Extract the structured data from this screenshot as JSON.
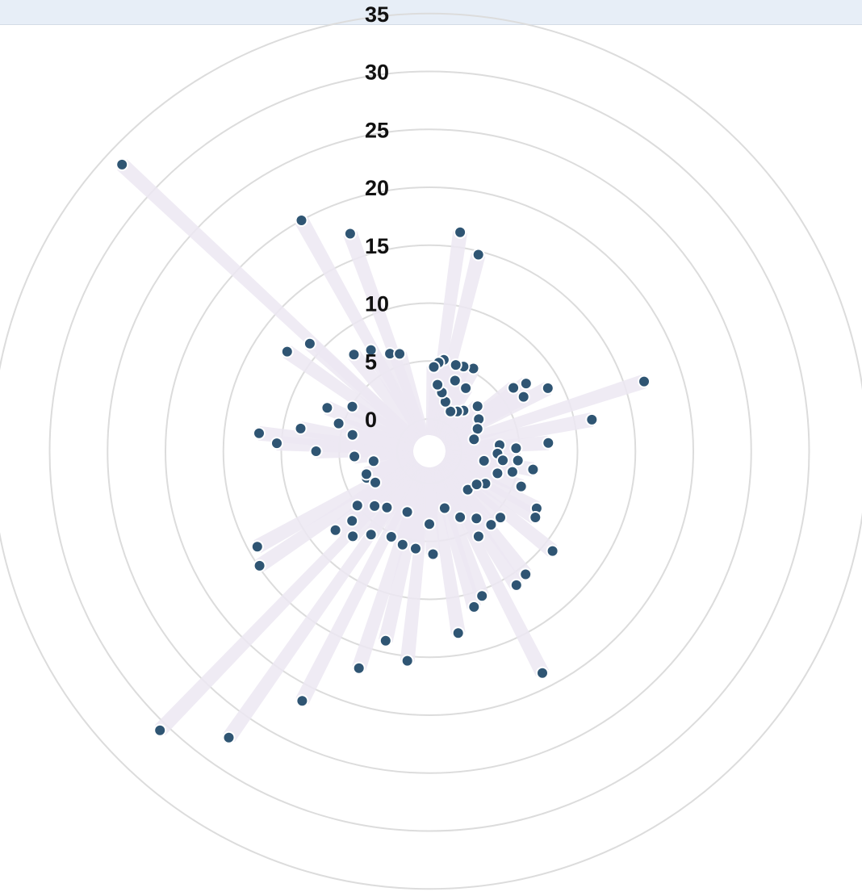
{
  "chart_data": {
    "type": "scatter",
    "coordinate_system": "polar",
    "radial_axis": {
      "ticks": [
        0,
        5,
        10,
        15,
        20,
        25,
        30,
        35
      ],
      "range": [
        0,
        35
      ]
    },
    "grid": true,
    "angle_unit": "degrees clockwise from top",
    "points": [
      {
        "angle": 313,
        "r": 33.5
      },
      {
        "angle": 331,
        "r": 20.0
      },
      {
        "angle": 340,
        "r": 17.2
      },
      {
        "angle": 8,
        "r": 16.3
      },
      {
        "angle": 14,
        "r": 14.7
      },
      {
        "angle": 72,
        "r": 16.7
      },
      {
        "angle": 79,
        "r": 11.5
      },
      {
        "angle": 86,
        "r": 7.5
      },
      {
        "angle": 62,
        "r": 8.8
      },
      {
        "angle": 55,
        "r": 7.4
      },
      {
        "angle": 53,
        "r": 6.3
      },
      {
        "angle": 60,
        "r": 6.6
      },
      {
        "angle": 28,
        "r": 5.3
      },
      {
        "angle": 22,
        "r": 5.1
      },
      {
        "angle": 17,
        "r": 5.0
      },
      {
        "angle": 9,
        "r": 5.2
      },
      {
        "angle": 6,
        "r": 4.9
      },
      {
        "angle": 3,
        "r": 4.5
      },
      {
        "angle": 20,
        "r": 3.7
      },
      {
        "angle": 30,
        "r": 3.5
      },
      {
        "angle": 47,
        "r": 2.9
      },
      {
        "angle": 57,
        "r": 2.3
      },
      {
        "angle": 65,
        "r": 1.8
      },
      {
        "angle": 75,
        "r": 1.2
      },
      {
        "angle": 40,
        "r": 1.8
      },
      {
        "angle": 35,
        "r": 1.4
      },
      {
        "angle": 28,
        "r": 1.1
      },
      {
        "angle": 18,
        "r": 1.7
      },
      {
        "angle": 12,
        "r": 2.4
      },
      {
        "angle": 7,
        "r": 3.0
      },
      {
        "angle": 85,
        "r": 3.3
      },
      {
        "angle": 92,
        "r": 3.1
      },
      {
        "angle": 97,
        "r": 3.6
      },
      {
        "angle": 100,
        "r": 6.3
      },
      {
        "angle": 118,
        "r": 7.7
      },
      {
        "angle": 122,
        "r": 8.0
      },
      {
        "angle": 111,
        "r": 5.7
      },
      {
        "angle": 108,
        "r": 3.4
      },
      {
        "angle": 120,
        "r": 2.8
      },
      {
        "angle": 133,
        "r": 5.6
      },
      {
        "angle": 140,
        "r": 5.5
      },
      {
        "angle": 129,
        "r": 10.9
      },
      {
        "angle": 153,
        "r": 18.7
      },
      {
        "angle": 171,
        "r": 13.1
      },
      {
        "angle": 186,
        "r": 15.4
      },
      {
        "angle": 198,
        "r": 16.9
      },
      {
        "angle": 193,
        "r": 14.0
      },
      {
        "angle": 207,
        "r": 21.4
      },
      {
        "angle": 215,
        "r": 27.4
      },
      {
        "angle": 224,
        "r": 30.7
      },
      {
        "angle": 241,
        "r": 14.2
      },
      {
        "angle": 236,
        "r": 14.9
      },
      {
        "angle": 230,
        "r": 7.8
      },
      {
        "angle": 222,
        "r": 7.1
      },
      {
        "angle": 215,
        "r": 6.0
      },
      {
        "angle": 228,
        "r": 6.2
      },
      {
        "angle": 233,
        "r": 5.0
      },
      {
        "angle": 247,
        "r": 3.1
      },
      {
        "angle": 240,
        "r": 2.6
      },
      {
        "angle": 250,
        "r": 3.0
      },
      {
        "angle": 260,
        "r": 2.1
      },
      {
        "angle": 266,
        "r": 3.7
      },
      {
        "angle": 270,
        "r": 7.0
      },
      {
        "angle": 273,
        "r": 10.4
      },
      {
        "angle": 276,
        "r": 12.0
      },
      {
        "angle": 280,
        "r": 8.5
      },
      {
        "angle": 293,
        "r": 6.8
      },
      {
        "angle": 305,
        "r": 12.2
      },
      {
        "angle": 312,
        "r": 11.1
      },
      {
        "angle": 322,
        "r": 7.8
      },
      {
        "angle": 330,
        "r": 7.3
      },
      {
        "angle": 338,
        "r": 6.3
      },
      {
        "angle": 343,
        "r": 6.0
      },
      {
        "angle": 300,
        "r": 4.9
      },
      {
        "angle": 287,
        "r": 5.4
      },
      {
        "angle": 282,
        "r": 4.0
      },
      {
        "angle": 188,
        "r": 5.7
      },
      {
        "angle": 196,
        "r": 5.6
      },
      {
        "angle": 204,
        "r": 5.3
      },
      {
        "angle": 180,
        "r": 3.5
      },
      {
        "angle": 165,
        "r": 2.3
      },
      {
        "angle": 155,
        "r": 3.5
      },
      {
        "angle": 145,
        "r": 4.3
      },
      {
        "angle": 150,
        "r": 5.7
      },
      {
        "angle": 160,
        "r": 10.5
      },
      {
        "angle": 164,
        "r": 11.2
      },
      {
        "angle": 147,
        "r": 11.0
      },
      {
        "angle": 142,
        "r": 10.7
      },
      {
        "angle": 178,
        "r": 6.1
      },
      {
        "angle": 200,
        "r": 2.8
      },
      {
        "angle": 217,
        "r": 3.3
      },
      {
        "angle": 225,
        "r": 3.9
      },
      {
        "angle": 135,
        "r": 1.9
      },
      {
        "angle": 125,
        "r": 2.2
      },
      {
        "angle": 100,
        "r": 2.0
      },
      {
        "angle": 88,
        "r": 4.7
      },
      {
        "angle": 96,
        "r": 4.9
      },
      {
        "angle": 104,
        "r": 4.6
      }
    ]
  }
}
